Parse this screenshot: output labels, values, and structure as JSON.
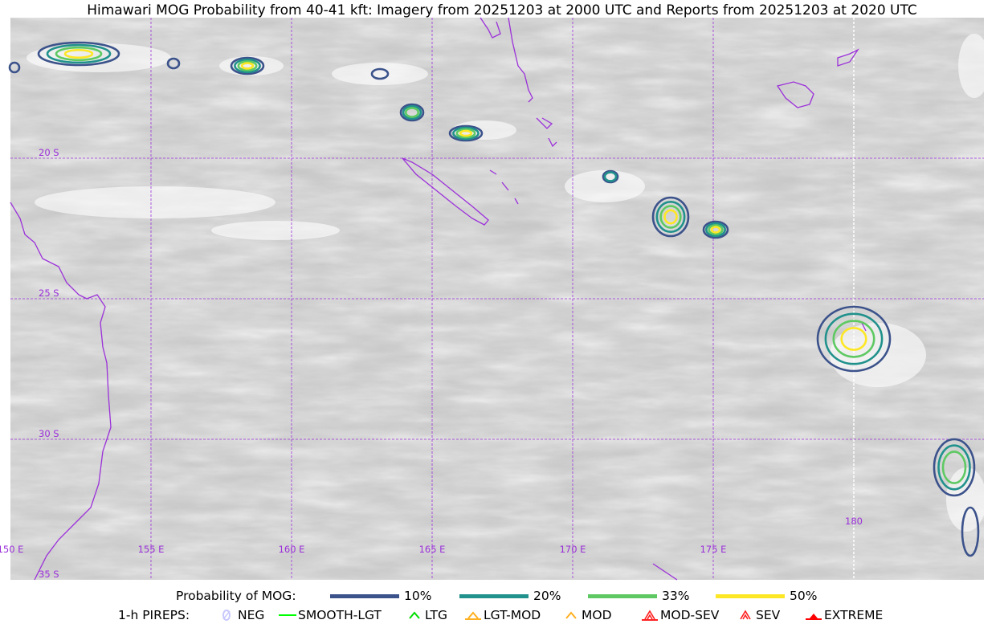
{
  "title": "Himawari MOG Probability from 40-41 kft: Imagery from 20251203 at 2000 UTC and Reports from 20251203 at 2020 UTC",
  "map": {
    "lat_labels": [
      "20 S",
      "25 S",
      "30 S",
      "35 S"
    ],
    "lon_labels": [
      "150 E",
      "155 E",
      "160 E",
      "165 E",
      "170 E",
      "175 E",
      "180"
    ],
    "grid_color": "#9b30d9",
    "coast_color": "#9b30d9"
  },
  "legend": {
    "probability_label": "Probability of MOG:",
    "levels": [
      {
        "label": "10%",
        "color": "#3b528b"
      },
      {
        "label": "20%",
        "color": "#21918c"
      },
      {
        "label": "33%",
        "color": "#5ec962"
      },
      {
        "label": "50%",
        "color": "#fde725"
      }
    ],
    "pireps_label": "1-h PIREPS:",
    "pireps": [
      {
        "label": "NEG",
        "icon": "neg-circle-icon",
        "color": "#c8c8ff"
      },
      {
        "label": "SMOOTH-LGT",
        "icon": "line-icon",
        "color": "#00ff00"
      },
      {
        "label": "LTG",
        "icon": "caret-icon",
        "color": "#00dd00"
      },
      {
        "label": "LGT-MOD",
        "icon": "caret-bar-icon",
        "color": "#ffb020"
      },
      {
        "label": "MOD",
        "icon": "caret-icon",
        "color": "#ffb020"
      },
      {
        "label": "MOD-SEV",
        "icon": "double-caret-bar-icon",
        "color": "#ff2020"
      },
      {
        "label": "SEV",
        "icon": "double-caret-icon",
        "color": "#ff2020"
      },
      {
        "label": "EXTREME",
        "icon": "filled-triangle-icon",
        "color": "#ff0000"
      }
    ]
  }
}
